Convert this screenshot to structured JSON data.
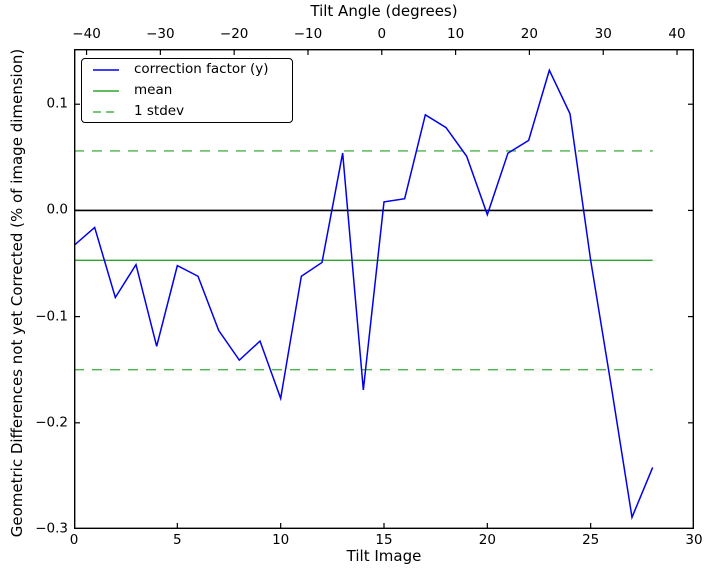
{
  "chart_data": {
    "type": "line",
    "title": "Tilt Angle (degrees)",
    "xlabel": "Tilt Image",
    "ylabel": "Geometric Differences not yet Corrected (% of image dimension)",
    "x": [
      0,
      1,
      2,
      3,
      4,
      5,
      6,
      7,
      8,
      9,
      10,
      11,
      12,
      13,
      14,
      15,
      16,
      17,
      18,
      19,
      20,
      21,
      22,
      23,
      24,
      25,
      26,
      27,
      28
    ],
    "series": [
      {
        "name": "correction factor (y)",
        "color": "#0000ee",
        "style": "solid",
        "values": [
          -0.033,
          -0.016,
          -0.082,
          -0.051,
          -0.128,
          -0.052,
          -0.062,
          -0.113,
          -0.141,
          -0.123,
          -0.177,
          -0.062,
          -0.049,
          0.054,
          -0.169,
          0.008,
          0.011,
          0.09,
          0.078,
          0.051,
          -0.004,
          0.054,
          0.066,
          0.132,
          0.091,
          -0.047,
          -0.166,
          -0.289,
          -0.242
        ]
      }
    ],
    "stats": {
      "mean": -0.047,
      "stdev": 0.103
    },
    "reference_lines": [
      {
        "name": "zero",
        "y": 0.0,
        "color": "#000000",
        "style": "solid",
        "width": 1.7
      },
      {
        "name": "mean",
        "y": -0.047,
        "color": "#2fa52f",
        "style": "solid",
        "width": 1.3
      },
      {
        "name": "stdev-upper",
        "y": 0.056,
        "color": "#4ab34a",
        "style": "dashed",
        "width": 1.3
      },
      {
        "name": "stdev-lower",
        "y": -0.15,
        "color": "#4ab34a",
        "style": "dashed",
        "width": 1.3
      }
    ],
    "xlim": [
      0,
      30
    ],
    "ylim": [
      -0.3,
      0.152
    ],
    "x_ticks": [
      0,
      5,
      10,
      15,
      20,
      25,
      30
    ],
    "y_ticks": [
      0.1,
      0.0,
      -0.1,
      -0.2,
      -0.3
    ],
    "top_axis": {
      "label": "Tilt Angle (degrees)",
      "ticks": [
        -40,
        -30,
        -20,
        -10,
        0,
        10,
        20,
        30,
        40
      ],
      "lim": [
        -41.7,
        42.3
      ]
    },
    "legend": {
      "position": "upper left",
      "entries": [
        {
          "label": "correction factor (y)",
          "color": "#0000ee",
          "style": "solid"
        },
        {
          "label": "mean",
          "color": "#2fa52f",
          "style": "solid"
        },
        {
          "label": "1 stdev",
          "color": "#4ab34a",
          "style": "dashed"
        }
      ]
    },
    "grid": false,
    "axes_color": "#000000",
    "background": "#ffffff"
  }
}
